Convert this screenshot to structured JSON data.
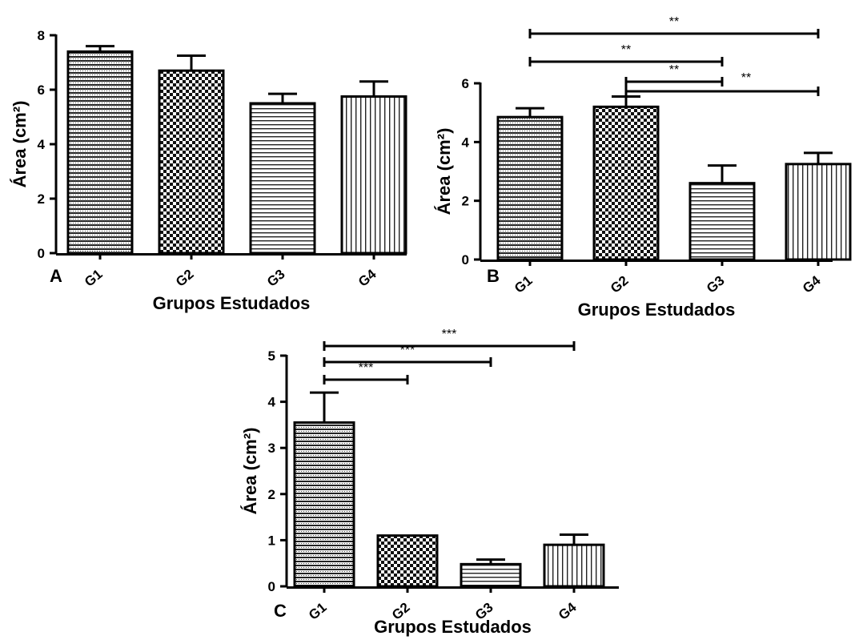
{
  "chart_data": [
    {
      "type": "bar",
      "panel_label": "A",
      "categories": [
        "G1",
        "G2",
        "G3",
        "G4"
      ],
      "values": [
        7.4,
        6.7,
        5.5,
        5.75
      ],
      "errors": [
        0.2,
        0.55,
        0.35,
        0.55
      ],
      "xlabel": "Grupos Estudados",
      "ylabel": "Área (cm²)",
      "ylim": [
        0,
        8
      ],
      "yticks": [
        0,
        2,
        4,
        6,
        8
      ],
      "brackets": [],
      "grid": false
    },
    {
      "type": "bar",
      "panel_label": "B",
      "categories": [
        "G1",
        "G2",
        "G3",
        "G4"
      ],
      "values": [
        4.85,
        5.2,
        2.6,
        3.25
      ],
      "errors": [
        0.3,
        0.35,
        0.6,
        0.38
      ],
      "xlabel": "Grupos Estudados",
      "ylabel": "Área (cm²)",
      "ylim": [
        0,
        6
      ],
      "yticks": [
        0,
        2,
        4,
        6
      ],
      "brackets": [
        {
          "from": "G1",
          "to": "G4",
          "label": "**"
        },
        {
          "from": "G1",
          "to": "G3",
          "label": "**"
        },
        {
          "from": "G2",
          "to": "G3",
          "label": "**"
        },
        {
          "from": "G2",
          "to": "G4",
          "label": "**"
        }
      ],
      "grid": false
    },
    {
      "type": "bar",
      "panel_label": "C",
      "categories": [
        "G1",
        "G2",
        "G3",
        "G4"
      ],
      "values": [
        3.55,
        1.1,
        0.48,
        0.9
      ],
      "errors": [
        0.65,
        0.0,
        0.1,
        0.22
      ],
      "xlabel": "Grupos Estudados",
      "ylabel": "Área (cm²)",
      "ylim": [
        0,
        5
      ],
      "yticks": [
        0,
        1,
        2,
        3,
        4,
        5
      ],
      "brackets": [
        {
          "from": "G1",
          "to": "G4",
          "label": "***"
        },
        {
          "from": "G1",
          "to": "G3",
          "label": "***"
        },
        {
          "from": "G1",
          "to": "G2",
          "label": "***"
        }
      ],
      "grid": false
    }
  ]
}
